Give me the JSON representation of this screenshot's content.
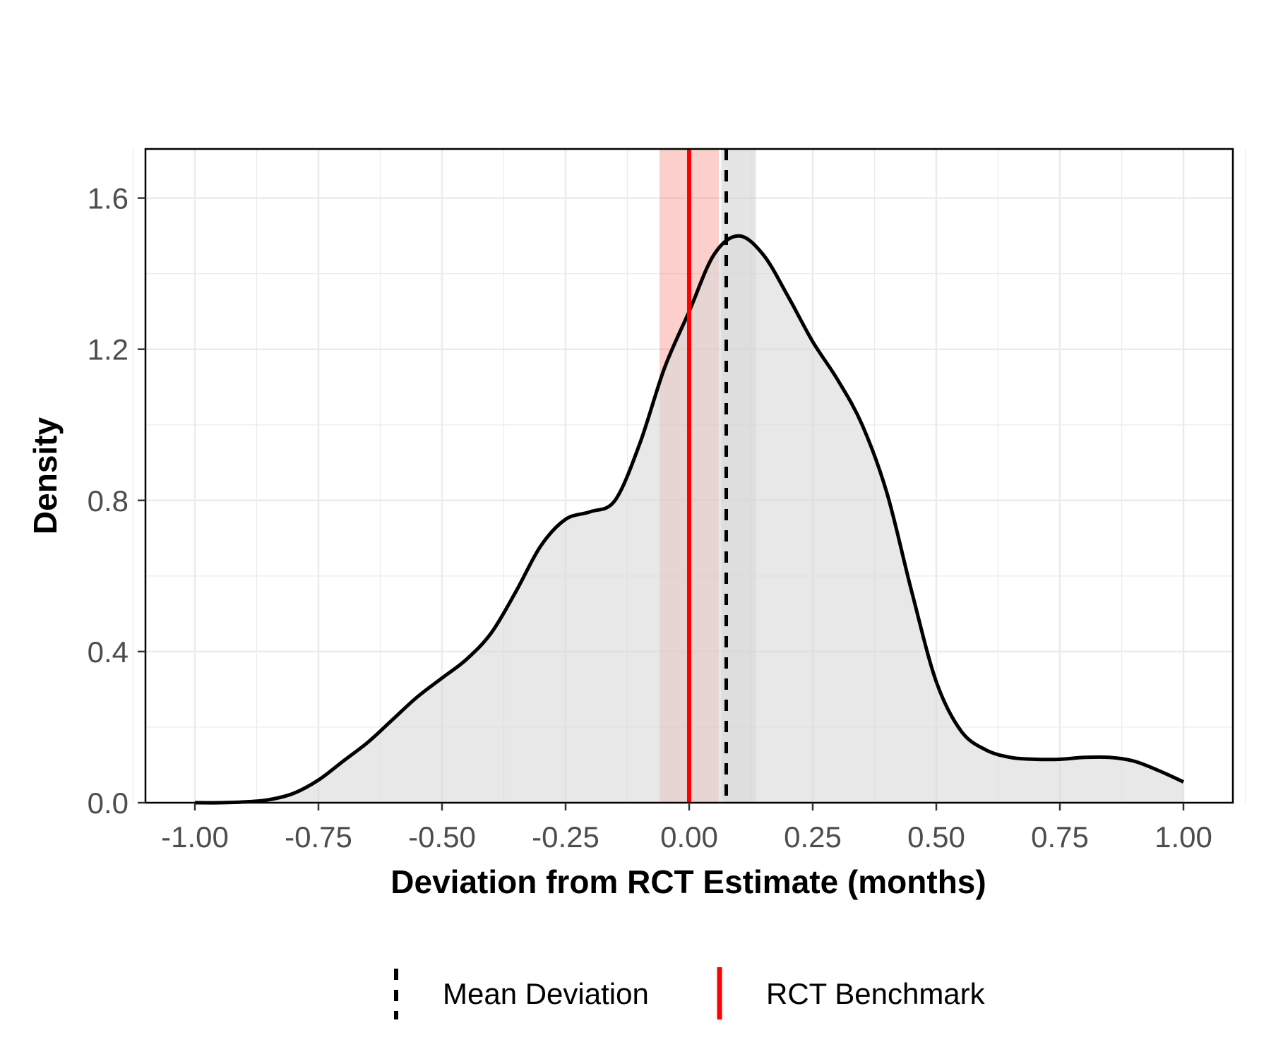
{
  "chart_data": {
    "type": "area",
    "title": "",
    "xlabel": "Deviation from RCT Estimate (months)",
    "ylabel": "Density",
    "xlim": [
      -1.1,
      1.1
    ],
    "ylim": [
      0,
      1.73
    ],
    "x_ticks": [
      -1.0,
      -0.75,
      -0.5,
      -0.25,
      0.0,
      0.25,
      0.5,
      0.75,
      1.0
    ],
    "x_tick_labels": [
      "-1.00",
      "-0.75",
      "-0.50",
      "-0.25",
      "0.00",
      "0.25",
      "0.50",
      "0.75",
      "1.00"
    ],
    "y_ticks": [
      0.0,
      0.4,
      0.8,
      1.2,
      1.6
    ],
    "y_tick_labels": [
      "0.0",
      "0.4",
      "0.8",
      "1.2",
      "1.6"
    ],
    "grid": true,
    "series": [
      {
        "name": "Density",
        "x": [
          -1.0,
          -0.95,
          -0.9,
          -0.85,
          -0.8,
          -0.75,
          -0.7,
          -0.65,
          -0.6,
          -0.55,
          -0.5,
          -0.45,
          -0.4,
          -0.35,
          -0.3,
          -0.25,
          -0.2,
          -0.15,
          -0.1,
          -0.05,
          0.0,
          0.05,
          0.1,
          0.15,
          0.2,
          0.25,
          0.3,
          0.35,
          0.4,
          0.45,
          0.5,
          0.55,
          0.6,
          0.65,
          0.7,
          0.75,
          0.8,
          0.85,
          0.9,
          0.95,
          1.0
        ],
        "values": [
          0.0,
          0.0,
          0.002,
          0.008,
          0.025,
          0.06,
          0.11,
          0.16,
          0.22,
          0.28,
          0.33,
          0.38,
          0.45,
          0.56,
          0.68,
          0.75,
          0.77,
          0.8,
          0.95,
          1.15,
          1.3,
          1.45,
          1.5,
          1.45,
          1.34,
          1.22,
          1.12,
          1.0,
          0.82,
          0.56,
          0.32,
          0.19,
          0.14,
          0.12,
          0.115,
          0.115,
          0.12,
          0.12,
          0.11,
          0.085,
          0.055
        ]
      }
    ],
    "mean_deviation": 0.075,
    "mean_ci": [
      0.065,
      0.135
    ],
    "rct_benchmark": 0.0,
    "rct_ci": [
      -0.06,
      0.06
    ],
    "legend": {
      "position": "bottom",
      "entries": [
        {
          "label": "Mean Deviation",
          "style": "dashed",
          "color": "#000000"
        },
        {
          "label": "RCT Benchmark",
          "style": "solid",
          "color": "#ff0000"
        }
      ]
    },
    "colors": {
      "fill": "#d9d9d9",
      "curve": "#000000",
      "rct": "#ff0000",
      "rct_band": "#f8766d",
      "mean_band": "#bfbfbf",
      "grid": "#ebebeb"
    }
  }
}
